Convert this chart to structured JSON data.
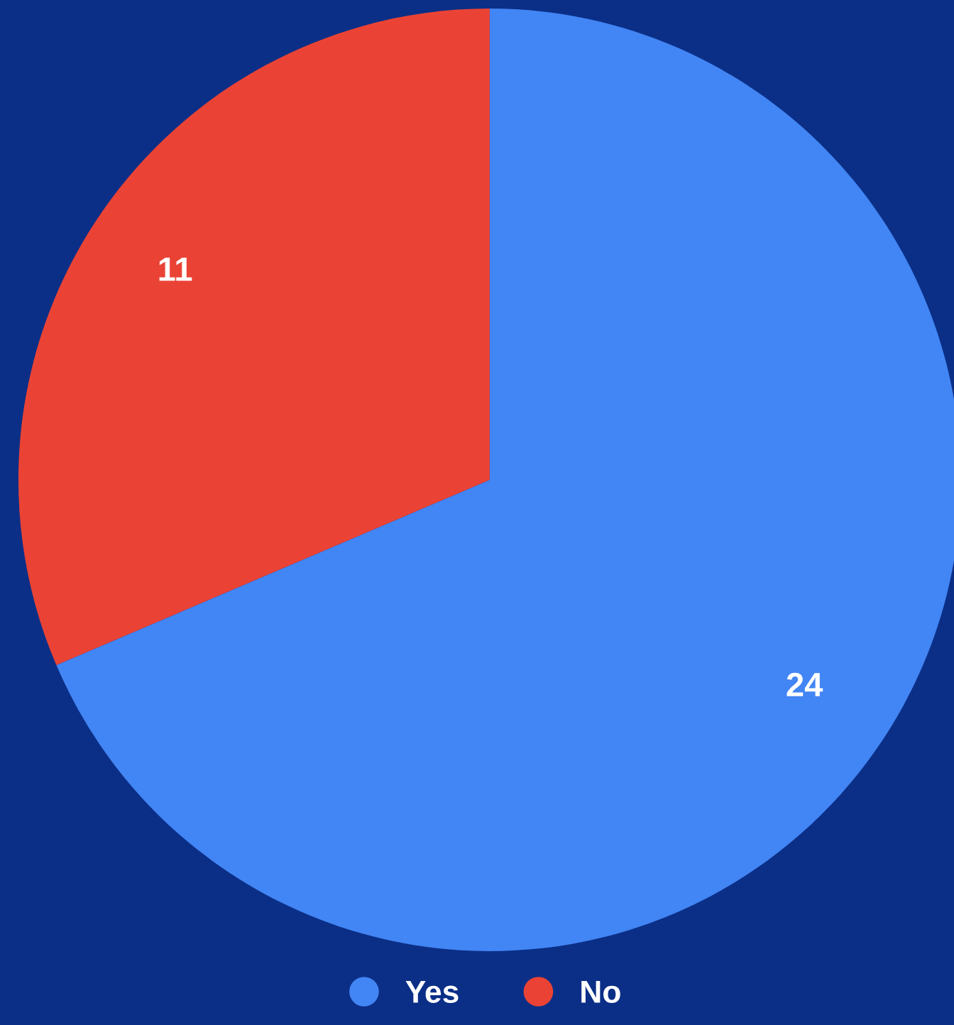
{
  "chart_data": {
    "type": "pie",
    "categories": [
      "Yes",
      "No"
    ],
    "values": [
      24,
      11
    ],
    "colors": [
      "#4285f4",
      "#ea4335"
    ],
    "data_labels": true,
    "legend": "bottom"
  }
}
